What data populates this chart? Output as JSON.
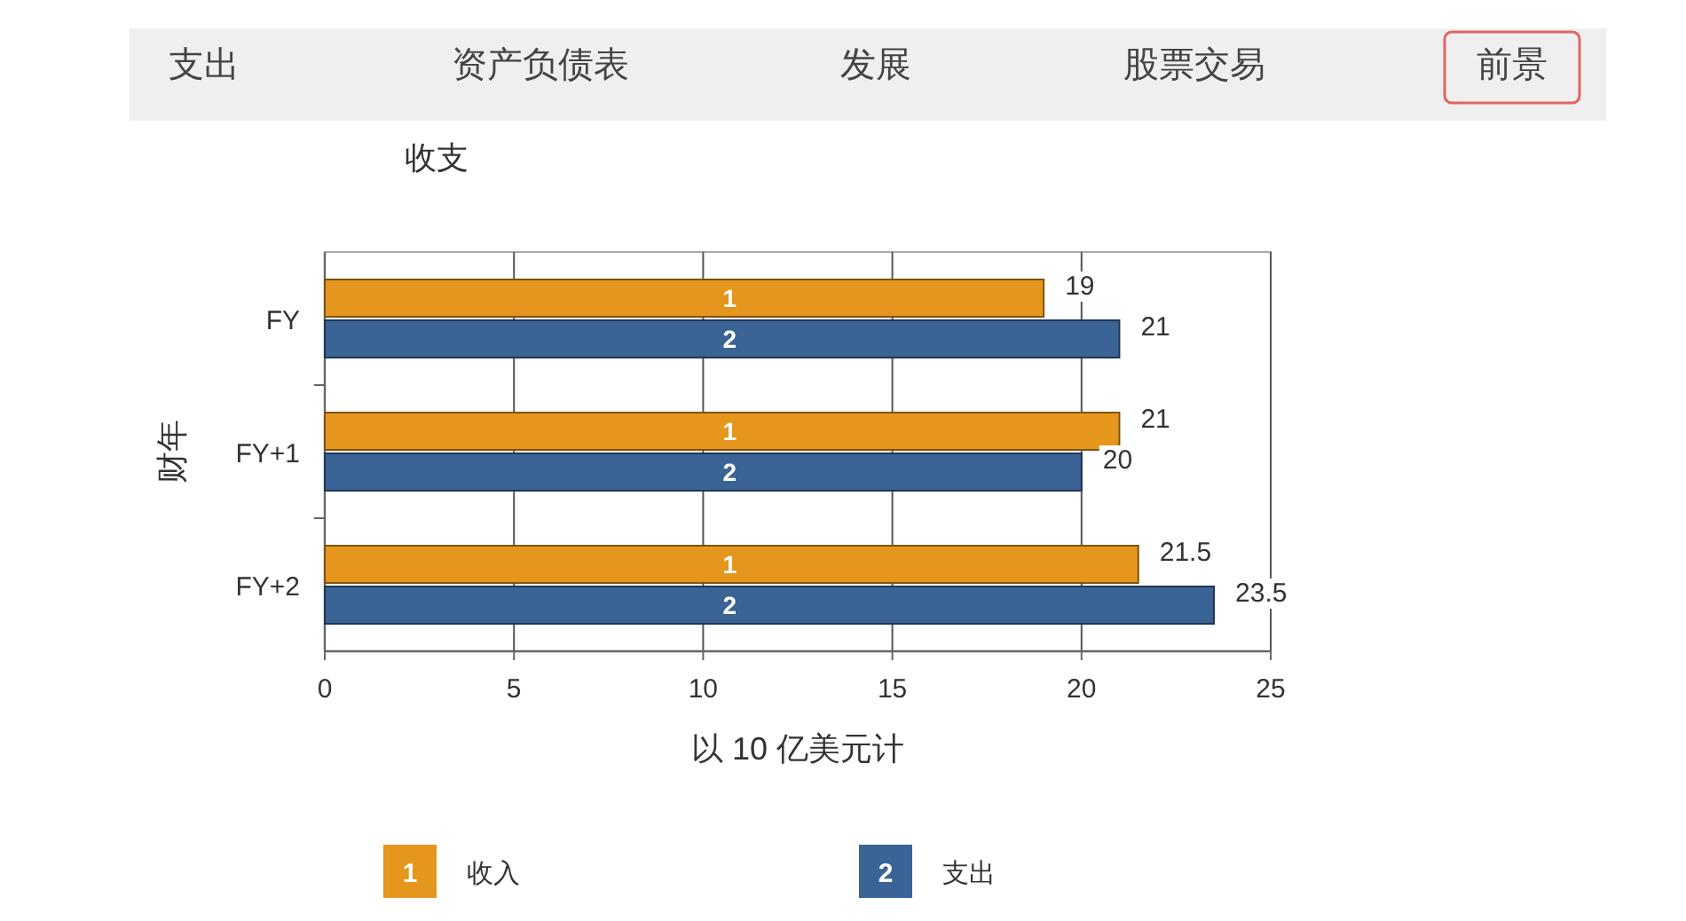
{
  "chart_data": {
    "type": "bar",
    "orientation": "horizontal",
    "title": "收支",
    "xlabel": "以 10 亿美元计",
    "ylabel": "财年",
    "categories": [
      "FY",
      "FY+1",
      "FY+2"
    ],
    "series": [
      {
        "name": "收入",
        "color": "#e5961c",
        "values": [
          19,
          21,
          21.5
        ]
      },
      {
        "name": "支出",
        "color": "#3a6396",
        "values": [
          21,
          20,
          23.5
        ]
      }
    ],
    "xlim": [
      0,
      25
    ],
    "xticks": [
      0,
      5,
      10,
      15,
      20,
      25
    ],
    "grid": "x",
    "legend": "bottom",
    "data_labels": true,
    "annotations": [
      "支出",
      "资产负债表",
      "发展",
      "股票交易",
      "前景",
      {
        "text": "1",
        "y": "FY"
      },
      {
        "text": "2",
        "y": "FY"
      },
      {
        "text": "1",
        "y": "FY+1"
      },
      {
        "text": "2",
        "y": "FY+1"
      },
      {
        "text": "1",
        "y": "FY+2"
      },
      {
        "text": "2",
        "y": "FY+2"
      }
    ]
  }
}
